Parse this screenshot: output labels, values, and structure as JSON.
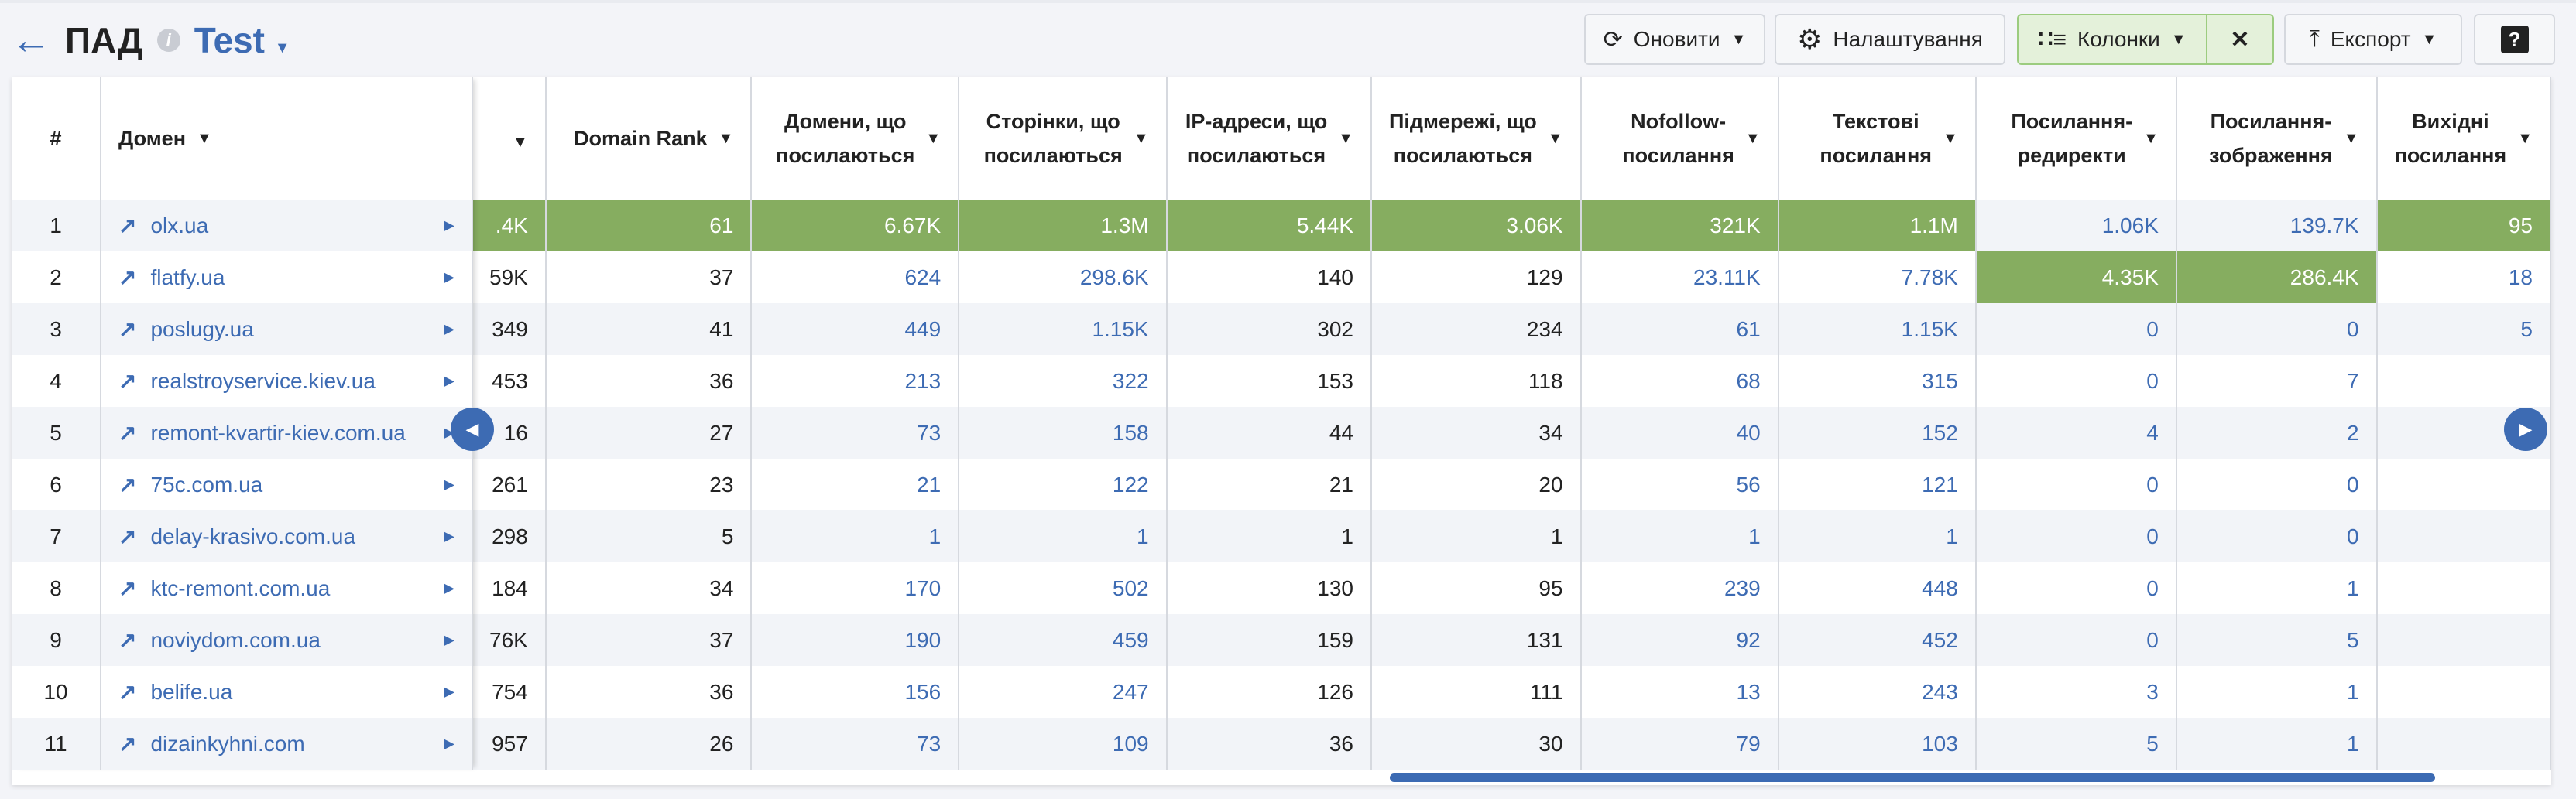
{
  "header": {
    "back_icon": "arrow-left-icon",
    "title": "ПАД",
    "info_icon": "info-icon",
    "project": "Test"
  },
  "toolbar": {
    "refresh": "Оновити",
    "settings": "Налаштування",
    "columns": "Колонки",
    "close": "✕",
    "export": "Експорт",
    "help": "?"
  },
  "colors": {
    "accent": "#3d6bb3",
    "highlight": "#86ad60",
    "row_alt": "#f2f4f8"
  },
  "table": {
    "frozen_headers": [
      "#",
      "Домен"
    ],
    "headers": [
      "",
      "Domain Rank",
      "Домени, що посилаються",
      "Сторінки, що посилаються",
      "IP-адреси, що посилаються",
      "Підмережі, що посилаються",
      "Nofollow-посилання",
      "Текстові посилання",
      "Посилання-редиректи",
      "Посилання-зображення",
      "Вихідні посилання"
    ],
    "blue_columns": [
      2,
      3,
      6,
      7,
      8,
      9,
      10
    ],
    "rows": [
      {
        "n": "1",
        "domain": "olx.ua",
        "cells": [
          ".4K",
          "61",
          "6.67K",
          "1.3M",
          "5.44K",
          "3.06K",
          "321K",
          "1.1M",
          "1.06K",
          "139.7K",
          "95"
        ],
        "highlight": [
          0,
          1,
          2,
          3,
          4,
          5,
          6,
          7,
          10
        ]
      },
      {
        "n": "2",
        "domain": "flatfy.ua",
        "cells": [
          "59K",
          "37",
          "624",
          "298.6K",
          "140",
          "129",
          "23.11K",
          "7.78K",
          "4.35K",
          "286.4K",
          "18"
        ],
        "highlight": [
          8,
          9
        ]
      },
      {
        "n": "3",
        "domain": "poslugy.ua",
        "cells": [
          "349",
          "41",
          "449",
          "1.15K",
          "302",
          "234",
          "61",
          "1.15K",
          "0",
          "0",
          "5"
        ],
        "highlight": []
      },
      {
        "n": "4",
        "domain": "realstroyservice.kiev.ua",
        "cells": [
          "453",
          "36",
          "213",
          "322",
          "153",
          "118",
          "68",
          "315",
          "0",
          "7",
          ""
        ],
        "highlight": []
      },
      {
        "n": "5",
        "domain": "remont-kvartir-kiev.com.ua",
        "cells": [
          "16",
          "27",
          "73",
          "158",
          "44",
          "34",
          "40",
          "152",
          "4",
          "2",
          ""
        ],
        "highlight": []
      },
      {
        "n": "6",
        "domain": "75c.com.ua",
        "cells": [
          "261",
          "23",
          "21",
          "122",
          "21",
          "20",
          "56",
          "121",
          "0",
          "0",
          ""
        ],
        "highlight": []
      },
      {
        "n": "7",
        "domain": "delay-krasivo.com.ua",
        "cells": [
          "298",
          "5",
          "1",
          "1",
          "1",
          "1",
          "1",
          "1",
          "0",
          "0",
          ""
        ],
        "highlight": []
      },
      {
        "n": "8",
        "domain": "ktc-remont.com.ua",
        "cells": [
          "184",
          "34",
          "170",
          "502",
          "130",
          "95",
          "239",
          "448",
          "0",
          "1",
          ""
        ],
        "highlight": []
      },
      {
        "n": "9",
        "domain": "noviydom.com.ua",
        "cells": [
          "76K",
          "37",
          "190",
          "459",
          "159",
          "131",
          "92",
          "452",
          "0",
          "5",
          ""
        ],
        "highlight": []
      },
      {
        "n": "10",
        "domain": "belife.ua",
        "cells": [
          "754",
          "36",
          "156",
          "247",
          "126",
          "111",
          "13",
          "243",
          "3",
          "1",
          ""
        ],
        "highlight": []
      },
      {
        "n": "11",
        "domain": "dizainkyhni.com",
        "cells": [
          "957",
          "26",
          "73",
          "109",
          "36",
          "30",
          "79",
          "103",
          "5",
          "1",
          ""
        ],
        "highlight": []
      }
    ]
  }
}
